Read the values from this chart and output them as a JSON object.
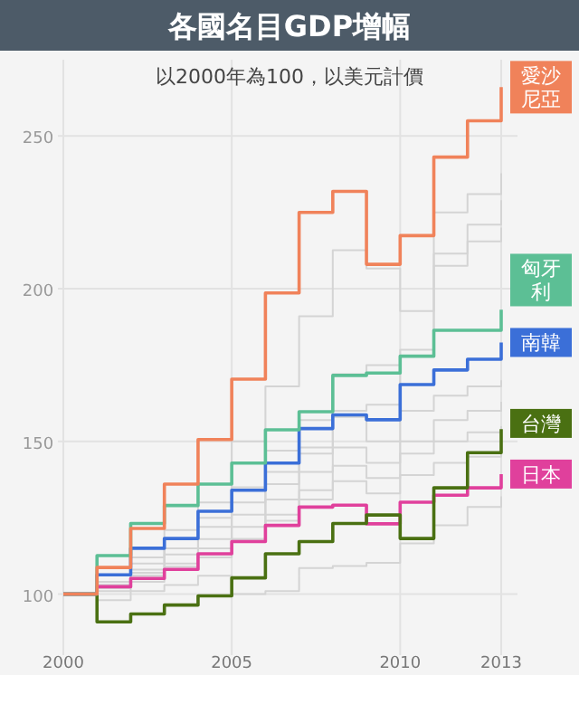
{
  "chart_data": {
    "type": "step",
    "title": "各國名目GDP增幅",
    "subtitle": "以2000年為100，以美元計價",
    "x": [
      2000,
      2001,
      2002,
      2003,
      2004,
      2005,
      2006,
      2007,
      2008,
      2009,
      2010,
      2011,
      2012,
      2013
    ],
    "xlim": [
      2000,
      2013
    ],
    "xticks": [
      2000,
      2005,
      2010,
      2013
    ],
    "ylim": [
      80,
      275
    ],
    "yticks": [
      100,
      150,
      200,
      250
    ],
    "grid": true,
    "series": [
      {
        "color": "#d4d4d4",
        "values": [
          100,
          104,
          112,
          121,
          130,
          150,
          168,
          191,
          212.6,
          206.6,
          192.7,
          225,
          231,
          237.8
        ]
      },
      {
        "color": "#d4d4d4",
        "values": [
          100,
          103,
          110,
          118,
          125,
          135,
          147,
          157,
          172,
          175,
          180,
          211.5,
          221,
          229
        ]
      },
      {
        "color": "#d4d4d4",
        "values": [
          100,
          102,
          108,
          115,
          122,
          130,
          140,
          148,
          160,
          162,
          178,
          207.5,
          215.5,
          220
        ]
      },
      {
        "color": "#d4d4d4",
        "values": [
          100,
          104,
          107,
          113,
          118,
          126,
          136,
          146,
          158,
          150,
          160,
          165,
          168,
          170
        ]
      },
      {
        "color": "#d4d4d4",
        "values": [
          100,
          101,
          106,
          110,
          115,
          122,
          131,
          140,
          148,
          143,
          150,
          157,
          160,
          163
        ]
      },
      {
        "color": "#d4d4d4",
        "values": [
          100,
          102,
          104,
          108,
          112,
          118,
          126,
          134,
          142,
          138,
          146,
          150,
          153,
          155
        ]
      },
      {
        "color": "#d4d4d4",
        "values": [
          100,
          103,
          106,
          109,
          113,
          118,
          124,
          131,
          137,
          133,
          139,
          143,
          145,
          147
        ]
      },
      {
        "color": "#d4d4d4",
        "values": [
          100,
          98,
          101,
          103,
          106,
          100,
          101,
          108.5,
          109.2,
          110.2,
          116.6,
          122.5,
          128.5,
          132
        ]
      },
      {
        "name": "日本",
        "color": "#e0409c",
        "values": [
          100,
          102.4,
          105.1,
          108.1,
          113.2,
          117.2,
          122.5,
          128.5,
          129.1,
          123,
          130.1,
          132.4,
          134.8,
          139.3
        ]
      },
      {
        "name": "台灣",
        "color": "#4a7012",
        "values": [
          100,
          90.9,
          93.5,
          96.4,
          99.4,
          105.3,
          113.2,
          117.2,
          123.1,
          125.9,
          118.2,
          134.8,
          146.3,
          154
        ]
      },
      {
        "name": "南韓",
        "color": "#3b6fd8",
        "values": [
          100,
          106.3,
          115,
          118.2,
          127.1,
          134,
          142.9,
          154.2,
          158.7,
          157.1,
          168.6,
          173.4,
          176.9,
          182.4
        ]
      },
      {
        "name": "匈牙利",
        "color": "#5cbf95",
        "values": [
          100,
          112.6,
          123.1,
          129,
          136,
          142.9,
          153.8,
          159.7,
          171.6,
          172.4,
          177.9,
          186.4,
          186.4,
          193.1
        ]
      },
      {
        "name": "愛沙尼亞",
        "color": "#f0825a",
        "values": [
          100,
          108.7,
          121.5,
          136,
          150.6,
          170.4,
          198.6,
          225,
          231.9,
          208,
          217.4,
          243.1,
          255,
          266
        ]
      }
    ]
  }
}
